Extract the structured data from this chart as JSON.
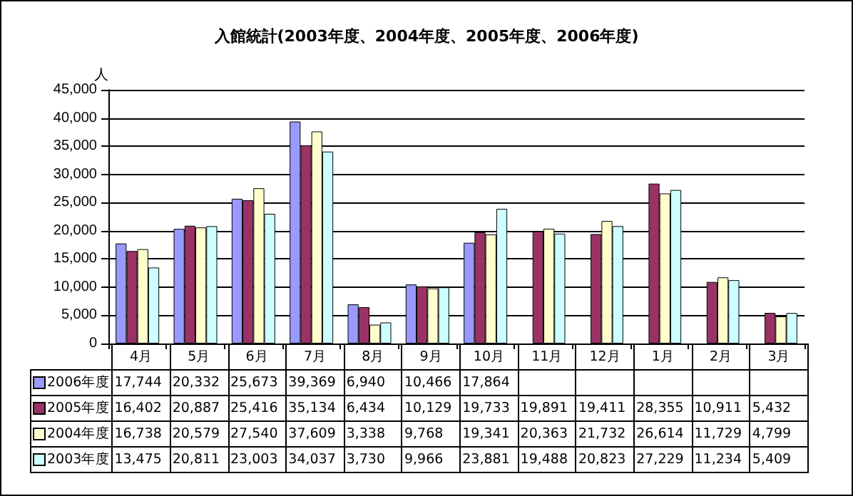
{
  "chart_data": {
    "type": "bar",
    "title": "入館統計(2003年度、2004年度、2005年度、2006年度)",
    "ylabel": "人",
    "categories": [
      "4月",
      "5月",
      "6月",
      "7月",
      "8月",
      "9月",
      "10月",
      "11月",
      "12月",
      "1月",
      "2月",
      "3月"
    ],
    "series": [
      {
        "name": "2006年度",
        "color": "#9999ff",
        "values": [
          17744,
          20332,
          25673,
          39369,
          6940,
          10466,
          17864,
          null,
          null,
          null,
          null,
          null
        ],
        "value_labels": [
          "17,744",
          "20,332",
          "25,673",
          "39,369",
          "6,940",
          "10,466",
          "17,864",
          null,
          null,
          null,
          null,
          null
        ]
      },
      {
        "name": "2005年度",
        "color": "#993366",
        "values": [
          16402,
          20887,
          25416,
          35134,
          6434,
          10129,
          19733,
          19891,
          19411,
          28355,
          10911,
          5432
        ],
        "value_labels": [
          "16,402",
          "20,887",
          "25,416",
          "35,134",
          "6,434",
          "10,129",
          "19,733",
          "19,891",
          "19,411",
          "28,355",
          "10,911",
          "5,432"
        ]
      },
      {
        "name": "2004年度",
        "color": "#ffffcc",
        "values": [
          16738,
          20579,
          27540,
          37609,
          3338,
          9768,
          19341,
          20363,
          21732,
          26614,
          11729,
          4799
        ],
        "value_labels": [
          "16,738",
          "20,579",
          "27,540",
          "37,609",
          "3,338",
          "9,768",
          "19,341",
          "20,363",
          "21,732",
          "26,614",
          "11,729",
          "4,799"
        ]
      },
      {
        "name": "2003年度",
        "color": "#ccffff",
        "values": [
          13475,
          20811,
          23003,
          34037,
          3730,
          9966,
          23881,
          19488,
          20823,
          27229,
          11234,
          5409
        ],
        "value_labels": [
          "13,475",
          "20,811",
          "23,003",
          "34,037",
          "3,730",
          "9,966",
          "23,881",
          "19,488",
          "20,823",
          "27,229",
          "11,234",
          "5,409"
        ]
      }
    ],
    "ylim": [
      0,
      45000
    ],
    "yticks": [
      0,
      {
        "value": 5000,
        "label": "5,000"
      },
      {
        "value": 10000,
        "label": "10,000"
      },
      {
        "value": 15000,
        "label": "15,000"
      },
      {
        "value": 20000,
        "label": "20,000"
      },
      {
        "value": 25000,
        "label": "25,000"
      },
      {
        "value": 30000,
        "label": "30,000"
      },
      {
        "value": 35000,
        "label": "35,000"
      },
      {
        "value": 40000,
        "label": "40,000"
      },
      {
        "value": 45000,
        "label": "45,000"
      }
    ],
    "grid": "y",
    "legend": "bottom"
  }
}
